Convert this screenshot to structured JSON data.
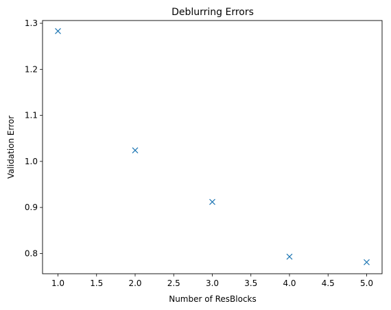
{
  "chart_data": {
    "type": "scatter",
    "title": "Deblurring Errors",
    "xlabel": "Number of ResBlocks",
    "ylabel": "Validation Error",
    "xlim": [
      0.8,
      5.2
    ],
    "ylim": [
      0.756,
      1.306
    ],
    "xticks": [
      "1.0",
      "1.5",
      "2.0",
      "2.5",
      "3.0",
      "3.5",
      "4.0",
      "4.5",
      "5.0"
    ],
    "yticks": [
      "0.8",
      "0.9",
      "1.0",
      "1.1",
      "1.2",
      "1.3"
    ],
    "marker": "x",
    "color": "#1f77b4",
    "grid": false,
    "series": [
      {
        "x": [
          1,
          2,
          3,
          4,
          5
        ],
        "y": [
          1.283,
          1.024,
          0.912,
          0.793,
          0.781
        ]
      }
    ]
  }
}
